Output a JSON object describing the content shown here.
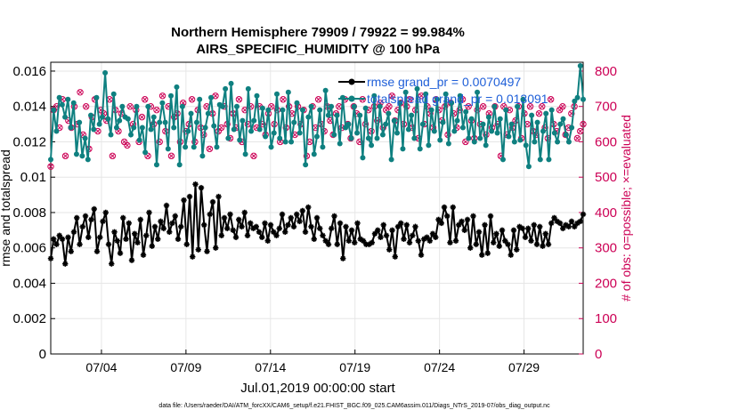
{
  "chart_data": {
    "type": "line",
    "title": "Northern Hemisphere 79909 / 79922 = 99.984%",
    "subtitle": "AIRS_SPECIFIC_HUMIDITY @ 100 hPa",
    "xlabel": "Jul.01,2019 00:00:00 start",
    "ylabel_left": "rmse and totalspread",
    "ylabel_right": "# of obs: o=possible; ×=evaluated",
    "footer": "data file: /Users/raeder/DAI/ATM_forcXX/CAM6_setup/f.e21.FHIST_BGC.f09_025.CAM6assim.011/Diags_NTrS_2019-07/obs_diag_output.nc",
    "x_range_days": [
      0,
      31.5
    ],
    "ylim_left": [
      0,
      0.0165
    ],
    "ylim_right": [
      0,
      825
    ],
    "x_ticks": [
      {
        "day": 3,
        "label": "07/04"
      },
      {
        "day": 8,
        "label": "07/09"
      },
      {
        "day": 13,
        "label": "07/14"
      },
      {
        "day": 18,
        "label": "07/19"
      },
      {
        "day": 23,
        "label": "07/24"
      },
      {
        "day": 28,
        "label": "07/29"
      }
    ],
    "y_ticks_left": [
      {
        "value": 0,
        "label": "0"
      },
      {
        "value": 0.002,
        "label": "0.002"
      },
      {
        "value": 0.004,
        "label": "0.004"
      },
      {
        "value": 0.006,
        "label": "0.006"
      },
      {
        "value": 0.008,
        "label": "0.008"
      },
      {
        "value": 0.01,
        "label": "0.01"
      },
      {
        "value": 0.012,
        "label": "0.012"
      },
      {
        "value": 0.014,
        "label": "0.014"
      },
      {
        "value": 0.016,
        "label": "0.016"
      }
    ],
    "y_ticks_right": [
      {
        "value": 0,
        "label": "0"
      },
      {
        "value": 100,
        "label": "100"
      },
      {
        "value": 200,
        "label": "200"
      },
      {
        "value": 300,
        "label": "300"
      },
      {
        "value": 400,
        "label": "400"
      },
      {
        "value": 500,
        "label": "500"
      },
      {
        "value": 600,
        "label": "600"
      },
      {
        "value": 700,
        "label": "700"
      },
      {
        "value": 800,
        "label": "800"
      }
    ],
    "grid": true,
    "legend_position": "top-right",
    "colors": {
      "rmse": "#000000",
      "spread": "#0f8080",
      "obs": "#cc0055",
      "legend_text": "#1f5fd8",
      "grid": "#e6e6e6"
    },
    "series": [
      {
        "name": "rmse grand_pr = 0.0070497",
        "axis": "left",
        "values": [
          0.0054,
          0.0065,
          0.0062,
          0.0067,
          0.0065,
          0.0051,
          0.0066,
          0.0058,
          0.0069,
          0.0077,
          0.0062,
          0.0072,
          0.0078,
          0.0066,
          0.0076,
          0.0082,
          0.0058,
          0.0066,
          0.0075,
          0.008,
          0.0062,
          0.0051,
          0.0069,
          0.0064,
          0.0057,
          0.0077,
          0.0065,
          0.0074,
          0.0053,
          0.0068,
          0.0063,
          0.0076,
          0.0056,
          0.0067,
          0.008,
          0.0061,
          0.0072,
          0.0065,
          0.0075,
          0.0071,
          0.0084,
          0.0069,
          0.0074,
          0.0078,
          0.0065,
          0.0072,
          0.0087,
          0.0062,
          0.0089,
          0.0055,
          0.0096,
          0.0059,
          0.0094,
          0.0073,
          0.0058,
          0.0079,
          0.0086,
          0.006,
          0.0089,
          0.0067,
          0.0077,
          0.0071,
          0.0079,
          0.007,
          0.0066,
          0.0076,
          0.0072,
          0.008,
          0.0067,
          0.0074,
          0.0071,
          0.0072,
          0.0069,
          0.0066,
          0.0074,
          0.0064,
          0.0073,
          0.0069,
          0.0067,
          0.0071,
          0.0079,
          0.0069,
          0.0073,
          0.0077,
          0.0072,
          0.0079,
          0.0075,
          0.0081,
          0.0069,
          0.0083,
          0.0072,
          0.0065,
          0.0077,
          0.0071,
          0.0067,
          0.0064,
          0.0062,
          0.0071,
          0.0078,
          0.0062,
          0.0074,
          0.0054,
          0.0072,
          0.0064,
          0.007,
          0.0063,
          0.0074,
          0.0065,
          0.0064,
          0.0062,
          0.0062,
          0.0063,
          0.0068,
          0.007,
          0.0066,
          0.0073,
          0.0067,
          0.0059,
          0.007,
          0.0055,
          0.0072,
          0.0074,
          0.0065,
          0.0073,
          0.0063,
          0.0067,
          0.0072,
          0.0064,
          0.0056,
          0.0065,
          0.0066,
          0.0064,
          0.0068,
          0.0066,
          0.0076,
          0.0074,
          0.0083,
          0.0078,
          0.0063,
          0.0083,
          0.0064,
          0.0073,
          0.0075,
          0.007,
          0.0076,
          0.006,
          0.0078,
          0.0062,
          0.0069,
          0.0056,
          0.0073,
          0.0057,
          0.0078,
          0.0063,
          0.0068,
          0.0061,
          0.007,
          0.0064,
          0.0062,
          0.0056,
          0.007,
          0.0059,
          0.0072,
          0.0071,
          0.0066,
          0.0071,
          0.0064,
          0.0073,
          0.0062,
          0.0072,
          0.0061,
          0.0068,
          0.0062,
          0.0074,
          0.0077,
          0.0075,
          0.0074,
          0.0071,
          0.0073,
          0.0072,
          0.0075,
          0.0072,
          0.0074,
          0.0075,
          0.0079
        ]
      },
      {
        "name": "totalspread grand_pr = 0.013091",
        "axis": "left",
        "values": [
          0.011,
          0.0138,
          0.0126,
          0.0145,
          0.0141,
          0.0134,
          0.0144,
          0.0128,
          0.0142,
          0.0113,
          0.0131,
          0.0112,
          0.0122,
          0.011,
          0.0135,
          0.0127,
          0.0145,
          0.013,
          0.0134,
          0.0159,
          0.0133,
          0.0124,
          0.0147,
          0.0128,
          0.0132,
          0.014,
          0.0134,
          0.0133,
          0.0124,
          0.0128,
          0.014,
          0.0121,
          0.0128,
          0.0114,
          0.014,
          0.0127,
          0.0134,
          0.0107,
          0.0131,
          0.0142,
          0.0131,
          0.0116,
          0.0146,
          0.0128,
          0.0151,
          0.0107,
          0.014,
          0.0117,
          0.0126,
          0.0136,
          0.0117,
          0.0131,
          0.0144,
          0.0112,
          0.0128,
          0.0136,
          0.0145,
          0.0129,
          0.0117,
          0.0141,
          0.014,
          0.015,
          0.0122,
          0.0153,
          0.0127,
          0.014,
          0.0121,
          0.0132,
          0.0113,
          0.015,
          0.0126,
          0.0132,
          0.0146,
          0.0127,
          0.0139,
          0.0123,
          0.0138,
          0.0117,
          0.0125,
          0.0147,
          0.0122,
          0.0138,
          0.012,
          0.0148,
          0.012,
          0.0131,
          0.0142,
          0.0125,
          0.0138,
          0.0107,
          0.0134,
          0.014,
          0.0113,
          0.0123,
          0.0138,
          0.0117,
          0.0149,
          0.0135,
          0.014,
          0.0124,
          0.0135,
          0.0119,
          0.0145,
          0.0128,
          0.013,
          0.0122,
          0.014,
          0.0125,
          0.0135,
          0.0111,
          0.0139,
          0.0122,
          0.0118,
          0.0146,
          0.0122,
          0.014,
          0.0124,
          0.013,
          0.0136,
          0.011,
          0.0132,
          0.0125,
          0.0142,
          0.0116,
          0.0148,
          0.0127,
          0.0135,
          0.0122,
          0.015,
          0.0116,
          0.013,
          0.0147,
          0.0118,
          0.0138,
          0.0126,
          0.0144,
          0.0121,
          0.0131,
          0.0147,
          0.0119,
          0.0142,
          0.0126,
          0.0132,
          0.0146,
          0.0128,
          0.0137,
          0.0122,
          0.0133,
          0.012,
          0.0148,
          0.0122,
          0.013,
          0.0118,
          0.0134,
          0.0126,
          0.014,
          0.0125,
          0.0133,
          0.011,
          0.0138,
          0.0123,
          0.013,
          0.012,
          0.014,
          0.0121,
          0.0144,
          0.0118,
          0.0106,
          0.0135,
          0.012,
          0.0131,
          0.011,
          0.0126,
          0.0136,
          0.011,
          0.0138,
          0.0125,
          0.012,
          0.013,
          0.0133,
          0.0124,
          0.012,
          0.0128,
          0.0143,
          0.0145,
          0.0163,
          0.0144
        ]
      },
      {
        "name": "obs (possible / evaluated)",
        "axis": "right",
        "values": [
          530,
          690,
          700,
          640,
          720,
          560,
          660,
          640,
          700,
          650,
          740,
          620,
          700,
          580,
          670,
          720,
          630,
          690,
          680,
          660,
          720,
          560,
          690,
          630,
          680,
          600,
          590,
          700,
          650,
          690,
          600,
          670,
          720,
          560,
          700,
          650,
          690,
          600,
          730,
          630,
          700,
          560,
          670,
          680,
          600,
          710,
          630,
          650,
          720,
          600,
          690,
          640,
          620,
          700,
          580,
          680,
          730,
          630,
          640,
          700,
          650,
          610,
          680,
          640,
          720,
          600,
          690,
          650,
          700,
          560,
          640,
          700,
          650,
          620,
          680,
          700,
          650,
          690,
          600,
          720,
          640,
          700,
          680,
          620,
          700,
          650,
          690,
          560,
          600,
          700,
          640,
          720,
          650,
          630,
          700,
          660,
          620,
          680,
          700,
          640,
          720,
          650,
          610,
          700,
          680,
          600,
          720,
          650,
          690,
          630,
          700,
          660,
          710,
          640,
          690,
          700,
          730,
          660,
          690,
          710,
          650,
          700,
          720,
          640,
          690,
          610,
          730,
          650,
          700,
          680,
          640,
          720,
          690,
          660,
          700,
          620,
          710,
          680,
          640,
          690,
          720,
          600,
          700,
          660,
          610,
          690,
          650,
          700,
          620,
          680,
          640,
          700,
          650,
          560,
          700,
          620,
          690,
          640,
          660,
          700,
          610,
          680,
          650,
          700,
          630,
          620,
          680,
          700,
          640,
          610,
          720,
          650,
          630,
          690,
          700,
          620,
          640,
          680,
          700,
          610,
          630,
          650
        ]
      }
    ]
  }
}
